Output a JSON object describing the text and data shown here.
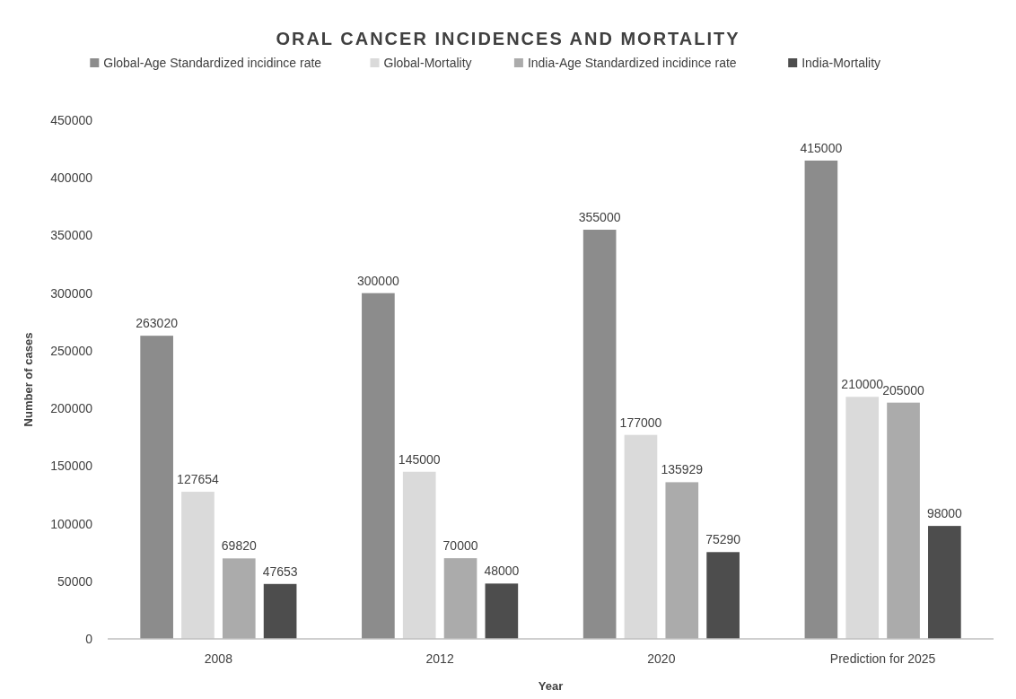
{
  "chart_data": {
    "type": "bar",
    "title": "ORAL CANCER INCIDENCES AND MORTALITY",
    "xlabel": "Year",
    "ylabel": "Number of cases",
    "categories": [
      "2008",
      "2012",
      "2020",
      "Prediction for 2025"
    ],
    "series": [
      {
        "name": "Global-Age Standardized incidince rate",
        "color": "#8c8c8c",
        "values": [
          263020,
          300000,
          355000,
          415000
        ]
      },
      {
        "name": "Global-Mortality",
        "color": "#dadada",
        "values": [
          127654,
          145000,
          177000,
          210000
        ]
      },
      {
        "name": "India-Age Standardized incidince rate",
        "color": "#ababab",
        "values": [
          69820,
          70000,
          135929,
          205000
        ]
      },
      {
        "name": "India-Mortality",
        "color": "#4d4d4d",
        "values": [
          47653,
          48000,
          75290,
          98000
        ]
      }
    ],
    "ylim": [
      0,
      450000
    ],
    "yticks": [
      0,
      50000,
      100000,
      150000,
      200000,
      250000,
      300000,
      350000,
      400000,
      450000
    ],
    "grid": false,
    "legend": "top",
    "data_labels": true
  }
}
